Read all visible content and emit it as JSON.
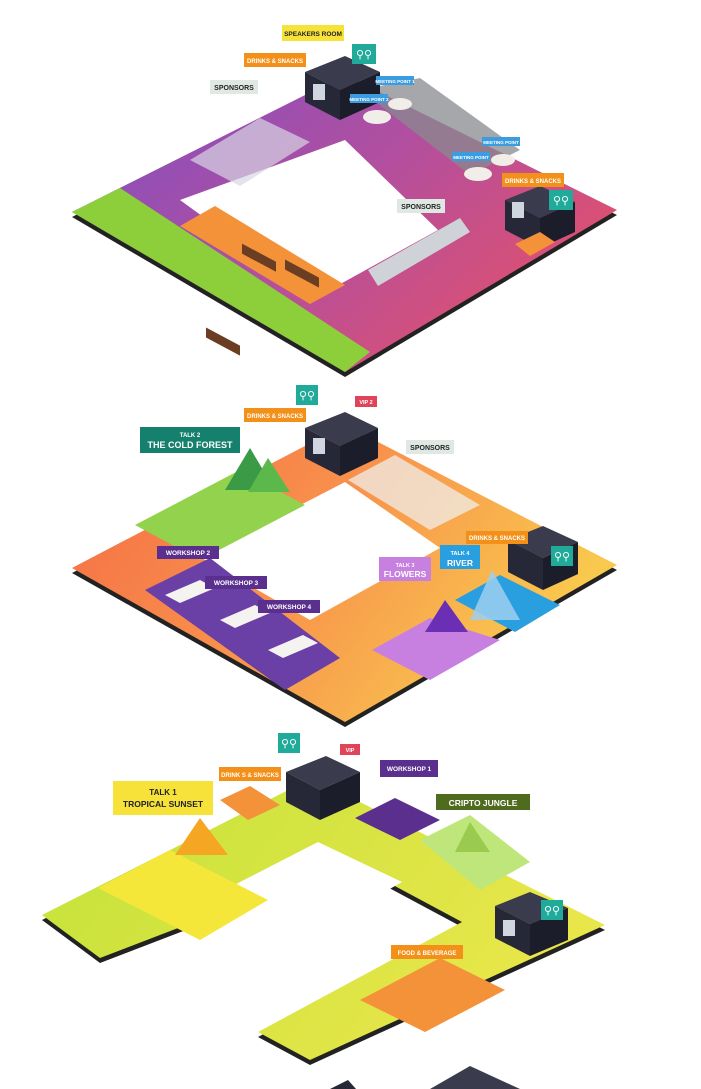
{
  "floors": {
    "top": {
      "labels": {
        "speakers_room": "SPEAKERS ROOM",
        "drinks_snacks_1": "DRINKS & SNACKS",
        "sponsors_1": "SPONSORS",
        "meeting_point_1": "MEETING POINT 1",
        "meeting_point_2": "MEETING POINT 2",
        "meeting_point_3": "MEETING POINT",
        "meeting_point_4": "MEETING POINT",
        "drinks_snacks_2": "DRINKS & SNACKS",
        "sponsors_2": "SPONSORS"
      }
    },
    "middle": {
      "labels": {
        "drinks_snacks_1": "DRINKS & SNACKS",
        "vip2": "VIP 2",
        "talk2_small": "TALK 2",
        "talk2_big": "THE COLD FOREST",
        "sponsors": "SPONSORS",
        "workshop2": "WORKSHOP 2",
        "workshop3": "WORKSHOP 3",
        "workshop4": "WORKSHOP 4",
        "talk3_small": "TALK 3",
        "talk3_big": "FLOWERS",
        "talk4_small": "TALK 4",
        "talk4_big": "RIVER",
        "drinks_snacks_2": "DRINKS & SNACKS"
      }
    },
    "bottom": {
      "labels": {
        "drinks_snacks": "DRINK S & SNACKS",
        "vip": "VIP",
        "workshop1": "WORKSHOP 1",
        "talk1_small": "TALK 1",
        "talk1_big": "TROPICAL SUNSET",
        "cripto_jungle": "CRIPTO JUNGLE",
        "food_beverage": "FOOD & BEVERAGE"
      }
    }
  },
  "colors": {
    "orange_tag": "#f39019",
    "yellow_tag": "#f7e23a",
    "sponsor_tag": "#dfe8e2",
    "blue_tag": "#3b9ce0",
    "teal_wc": "#1faa9a",
    "purple_tag": "#5a2f8e",
    "red_tag": "#e0445a",
    "green_dark_tag": "#4e6b1e",
    "dark_box": "#262838"
  }
}
